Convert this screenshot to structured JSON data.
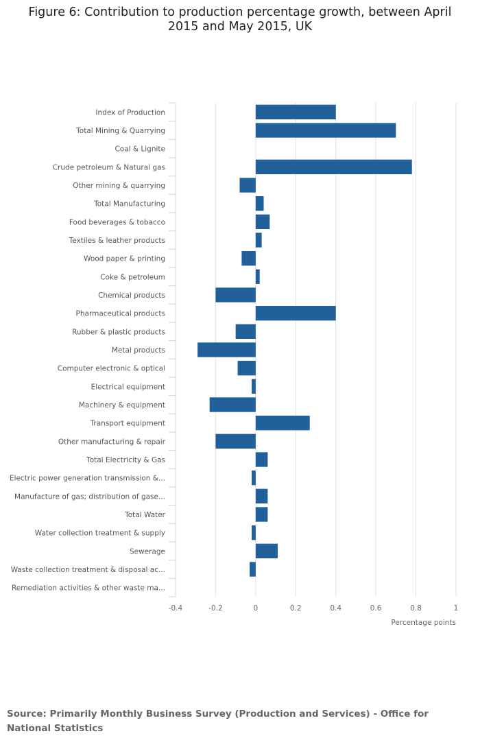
{
  "chart_data": {
    "type": "bar",
    "orientation": "horizontal",
    "title": "Figure 6: Contribution to production percentage growth, between April 2015 and May 2015, UK",
    "xlabel": "Percentage points",
    "ylabel": "",
    "xlim": [
      -0.4,
      1
    ],
    "xticks": [
      "-0.4",
      "-0.2",
      "0",
      "0.2",
      "0.4",
      "0.6",
      "0.8",
      "1"
    ],
    "grid": true,
    "bar_color": "#21609a",
    "categories": [
      "Index of Production",
      "Total Mining & Quarrying",
      "Coal & Lignite",
      "Crude petroleum & Natural gas",
      "Other mining & quarrying",
      "Total Manufacturing",
      "Food beverages & tobacco",
      "Textiles & leather products",
      "Wood paper & printing",
      "Coke & petroleum",
      "Chemical products",
      "Pharmaceutical products",
      "Rubber & plastic products",
      "Metal products",
      "Computer electronic & optical",
      "Electrical equipment",
      "Machinery & equipment",
      "Transport equipment",
      "Other manufacturing & repair",
      "Total Electricity & Gas",
      "Electric power generation transmission &...",
      "Manufacture of gas; distribution of gase...",
      "Total Water",
      "Water collection treatment & supply",
      "Sewerage",
      "Waste collection treatment & disposal ac...",
      "Remediation activities & other waste ma..."
    ],
    "values": [
      0.4,
      0.7,
      0,
      0.78,
      -0.08,
      0.04,
      0.07,
      0.03,
      -0.07,
      0.02,
      -0.2,
      0.4,
      -0.1,
      -0.29,
      -0.09,
      -0.02,
      -0.23,
      0.27,
      -0.2,
      0.06,
      -0.02,
      0.06,
      0.06,
      -0.02,
      0.11,
      -0.03,
      0
    ]
  },
  "source": "Source: Primarily Monthly Business Survey (Production and Services) - Office for National Statistics"
}
